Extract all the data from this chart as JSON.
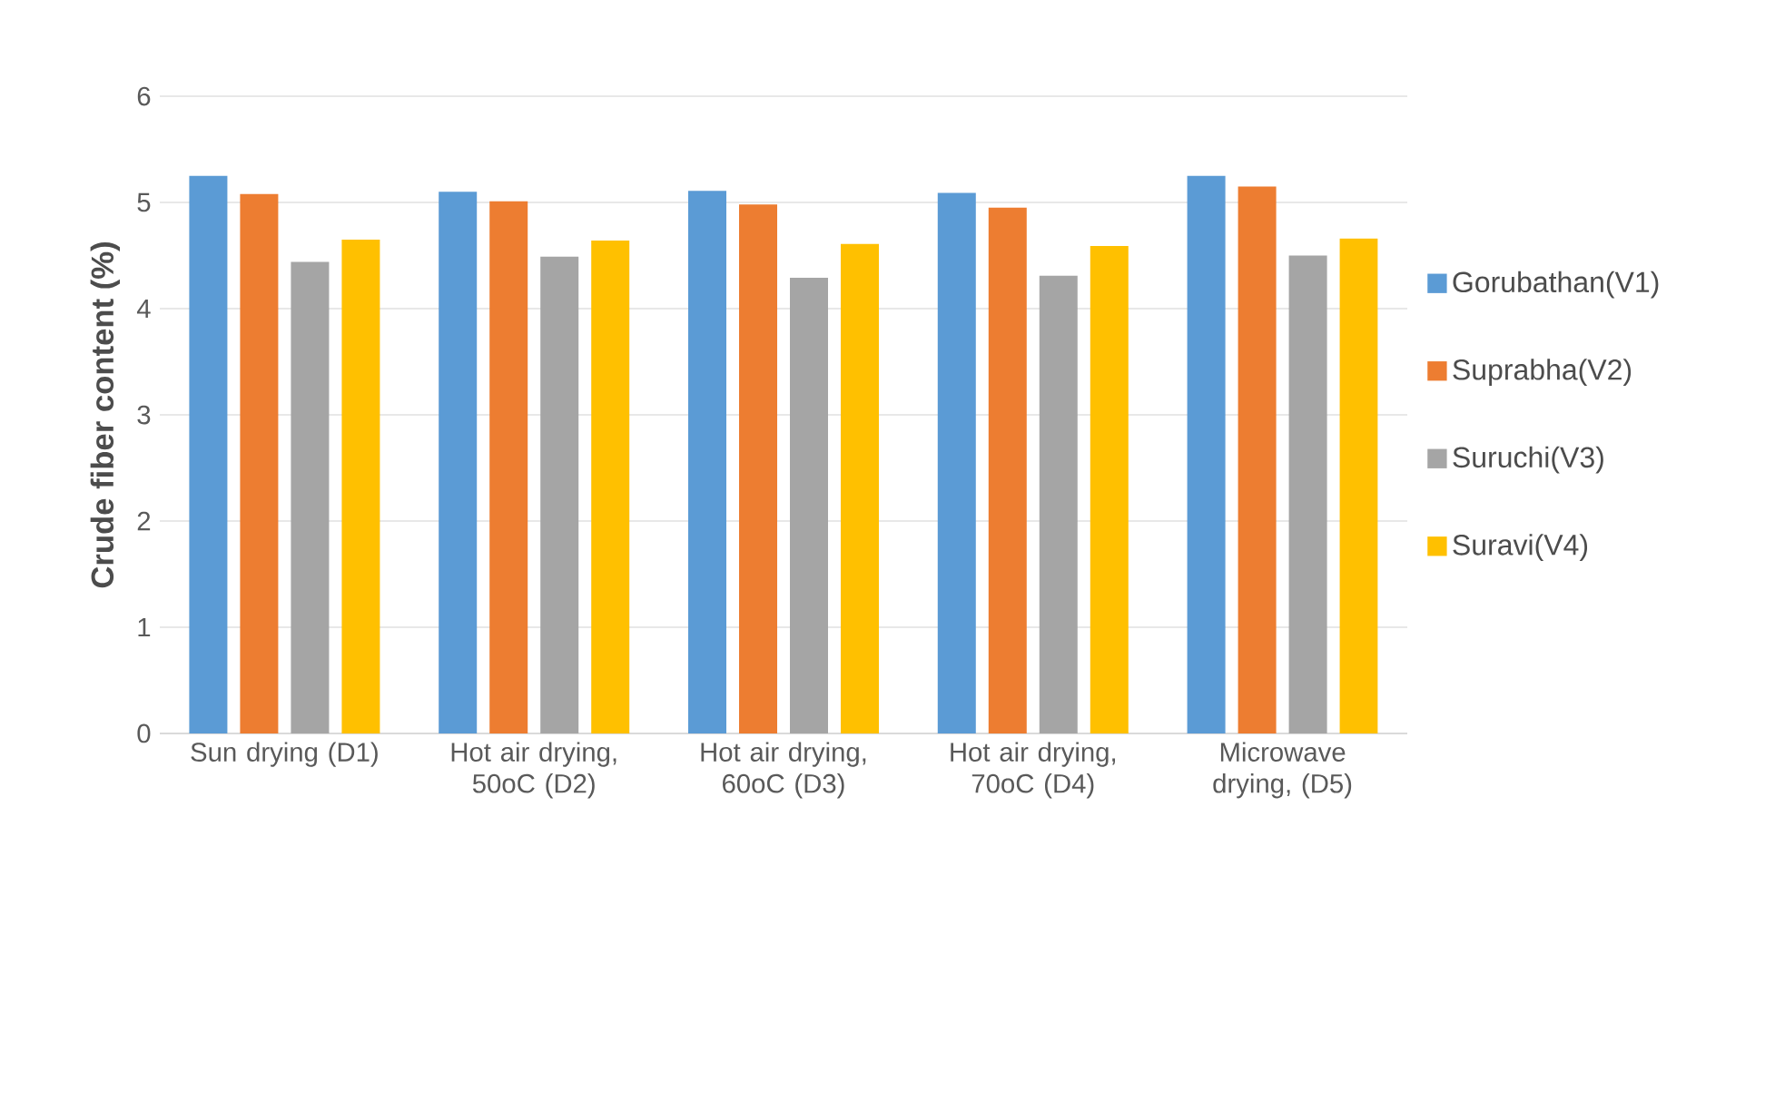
{
  "chart_data": {
    "type": "bar",
    "ylabel": "Crude fiber content (%)",
    "categories": [
      "Sun drying (D1)",
      "Hot air drying, 50oC (D2)",
      "Hot air drying, 60oC (D3)",
      "Hot air drying, 70oC (D4)",
      "Microwave drying, (D5)"
    ],
    "series": [
      {
        "name": "Gorubathan(V1)",
        "color": "#5b9bd5",
        "values": [
          5.25,
          5.1,
          5.11,
          5.09,
          5.25
        ]
      },
      {
        "name": "Suprabha(V2)",
        "color": "#ed7d31",
        "values": [
          5.08,
          5.01,
          4.98,
          4.95,
          5.15
        ]
      },
      {
        "name": "Suruchi(V3)",
        "color": "#a5a5a5",
        "values": [
          4.44,
          4.49,
          4.29,
          4.31,
          4.5
        ]
      },
      {
        "name": "Suravi(V4)",
        "color": "#ffc000",
        "values": [
          4.65,
          4.64,
          4.61,
          4.59,
          4.66
        ]
      }
    ],
    "ylim": [
      0,
      6
    ],
    "yticks": [
      0,
      1,
      2,
      3,
      4,
      5,
      6
    ],
    "grid": "y",
    "legend": "right"
  }
}
